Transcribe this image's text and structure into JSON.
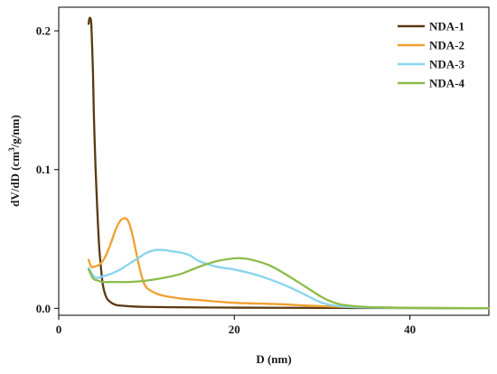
{
  "chart_data": {
    "type": "line",
    "title": "",
    "xlabel": "D (nm)",
    "ylabel": "dV/dD (cm3/g/nm)",
    "ylabel_parts": {
      "before": "dV/dD (cm",
      "sup": "3",
      "after": "/g/nm)"
    },
    "xlim": [
      0,
      49
    ],
    "ylim": [
      -0.005,
      0.217
    ],
    "xticks": [
      0,
      20,
      40
    ],
    "xtick_labels": [
      "0",
      "20",
      "40"
    ],
    "yticks": [
      0.0,
      0.1,
      0.2
    ],
    "ytick_labels": [
      "0.0",
      "0.1",
      "0.2"
    ],
    "grid": false,
    "legend_position": "top-right",
    "series": [
      {
        "name": "NDA-1",
        "color": "#5a3a12",
        "x": [
          3.4,
          3.5,
          3.6,
          3.7,
          3.8,
          3.9,
          4.0,
          4.2,
          4.4,
          4.6,
          4.8,
          5.0,
          5.2,
          5.5,
          6.0,
          6.5,
          7,
          8,
          10,
          15,
          20,
          30,
          40,
          49
        ],
        "y": [
          0.205,
          0.209,
          0.209,
          0.206,
          0.19,
          0.17,
          0.14,
          0.1,
          0.07,
          0.045,
          0.03,
          0.018,
          0.012,
          0.007,
          0.004,
          0.0025,
          0.002,
          0.0015,
          0.001,
          0.0007,
          0.0005,
          0.0003,
          0.0002,
          0.0001
        ]
      },
      {
        "name": "NDA-2",
        "color": "#f0a030",
        "x": [
          3.4,
          3.7,
          4.0,
          4.5,
          5.0,
          5.5,
          6.0,
          6.5,
          7.0,
          7.5,
          7.8,
          8.1,
          8.5,
          9.0,
          9.5,
          10.0,
          11,
          12,
          14,
          16,
          20,
          25,
          30,
          35,
          40,
          45,
          49
        ],
        "y": [
          0.035,
          0.03,
          0.03,
          0.031,
          0.034,
          0.04,
          0.048,
          0.057,
          0.063,
          0.065,
          0.064,
          0.06,
          0.05,
          0.035,
          0.022,
          0.015,
          0.011,
          0.009,
          0.007,
          0.006,
          0.004,
          0.003,
          0.0015,
          0.0008,
          0.0004,
          0.0002,
          0.0001
        ]
      },
      {
        "name": "NDA-3",
        "color": "#88d4ee",
        "x": [
          3.4,
          3.7,
          4.0,
          4.5,
          5,
          6,
          7,
          8,
          9,
          10,
          11,
          12,
          13,
          14,
          15,
          16,
          18,
          20,
          22,
          24,
          26,
          28,
          30,
          32,
          35,
          40,
          49
        ],
        "y": [
          0.029,
          0.026,
          0.023,
          0.022,
          0.023,
          0.025,
          0.028,
          0.032,
          0.036,
          0.04,
          0.042,
          0.042,
          0.041,
          0.04,
          0.038,
          0.034,
          0.03,
          0.028,
          0.025,
          0.021,
          0.016,
          0.01,
          0.004,
          0.0015,
          0.0006,
          0.0002,
          0.0001
        ]
      },
      {
        "name": "NDA-4",
        "color": "#8cbc4a",
        "x": [
          3.4,
          3.7,
          4.0,
          4.5,
          5,
          6,
          8,
          10,
          12,
          14,
          16,
          18,
          20,
          21,
          22,
          24,
          26,
          28,
          30,
          31,
          32,
          33,
          35,
          38,
          40,
          45,
          49
        ],
        "y": [
          0.028,
          0.024,
          0.021,
          0.02,
          0.019,
          0.019,
          0.019,
          0.02,
          0.022,
          0.025,
          0.03,
          0.034,
          0.036,
          0.036,
          0.035,
          0.031,
          0.024,
          0.016,
          0.008,
          0.005,
          0.003,
          0.002,
          0.001,
          0.0005,
          0.0003,
          0.0001,
          0.0001
        ]
      }
    ]
  }
}
